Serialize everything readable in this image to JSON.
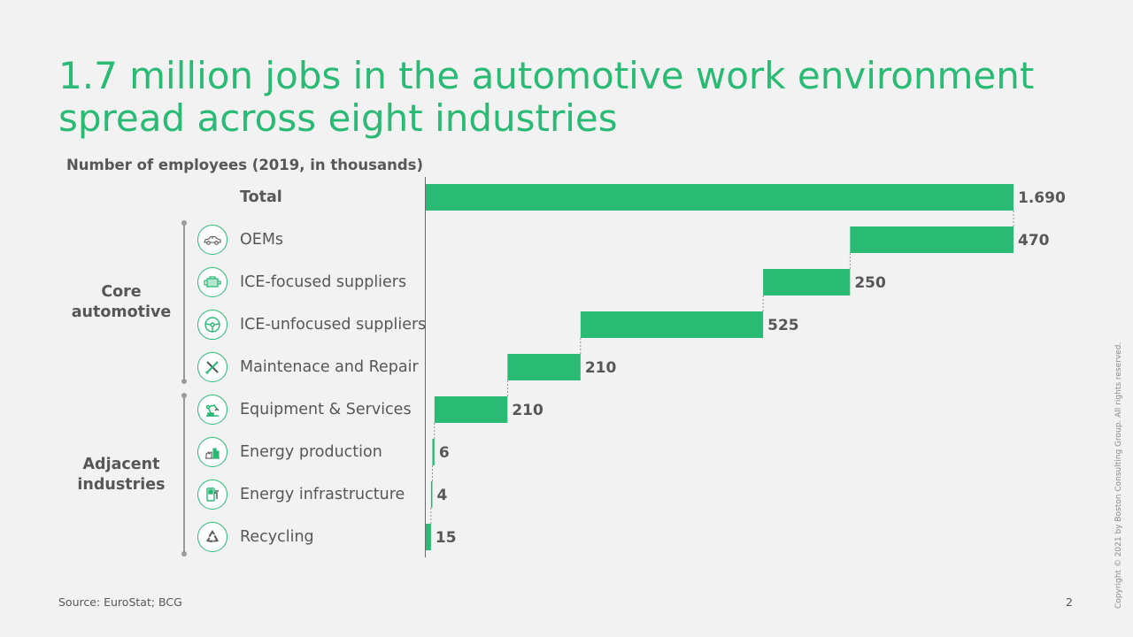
{
  "title": "1.7 million jobs in the automotive work environment spread across eight industries",
  "colors": {
    "accent": "#29ba74",
    "text": "#575757",
    "background": "#f2f2f2"
  },
  "groups": {
    "core": "Core automotive",
    "adjacent": "Adjacent industries"
  },
  "rows": [
    {
      "label": "Total",
      "icon": ""
    },
    {
      "label": "OEMs",
      "icon": "car-icon"
    },
    {
      "label": "ICE-focused suppliers",
      "icon": "engine-icon"
    },
    {
      "label": "ICE-unfocused suppliers",
      "icon": "steering-wheel-icon"
    },
    {
      "label": "Maintenace and Repair",
      "icon": "tools-icon"
    },
    {
      "label": "Equipment & Services",
      "icon": "robot-arm-icon"
    },
    {
      "label": "Energy production",
      "icon": "factory-icon"
    },
    {
      "label": "Energy infrastructure",
      "icon": "charging-station-icon"
    },
    {
      "label": "Recycling",
      "icon": "recycle-icon"
    }
  ],
  "chart_data": {
    "type": "bar",
    "subtype": "waterfall",
    "title": "",
    "subtitle": "Number of employees (2019, in thousands)",
    "categories": [
      "Total",
      "OEMs",
      "ICE-focused suppliers",
      "ICE-unfocused suppliers",
      "Maintenace and Repair",
      "Equipment & Services",
      "Energy production",
      "Energy infrastructure",
      "Recycling"
    ],
    "values": [
      1690,
      470,
      250,
      525,
      210,
      210,
      6,
      4,
      15
    ],
    "value_labels": [
      "1.690",
      "470",
      "250",
      "525",
      "210",
      "210",
      "6",
      "4",
      "15"
    ],
    "orientation": "horizontal",
    "xlim": [
      0,
      1690
    ],
    "grid": false,
    "legend": "none",
    "color": "#29ba74"
  },
  "footer": {
    "source": "Source: EuroStat; BCG",
    "page": "2",
    "copyright": "Copyright © 2021 by Boston Consulting Group. All rights reserved."
  }
}
